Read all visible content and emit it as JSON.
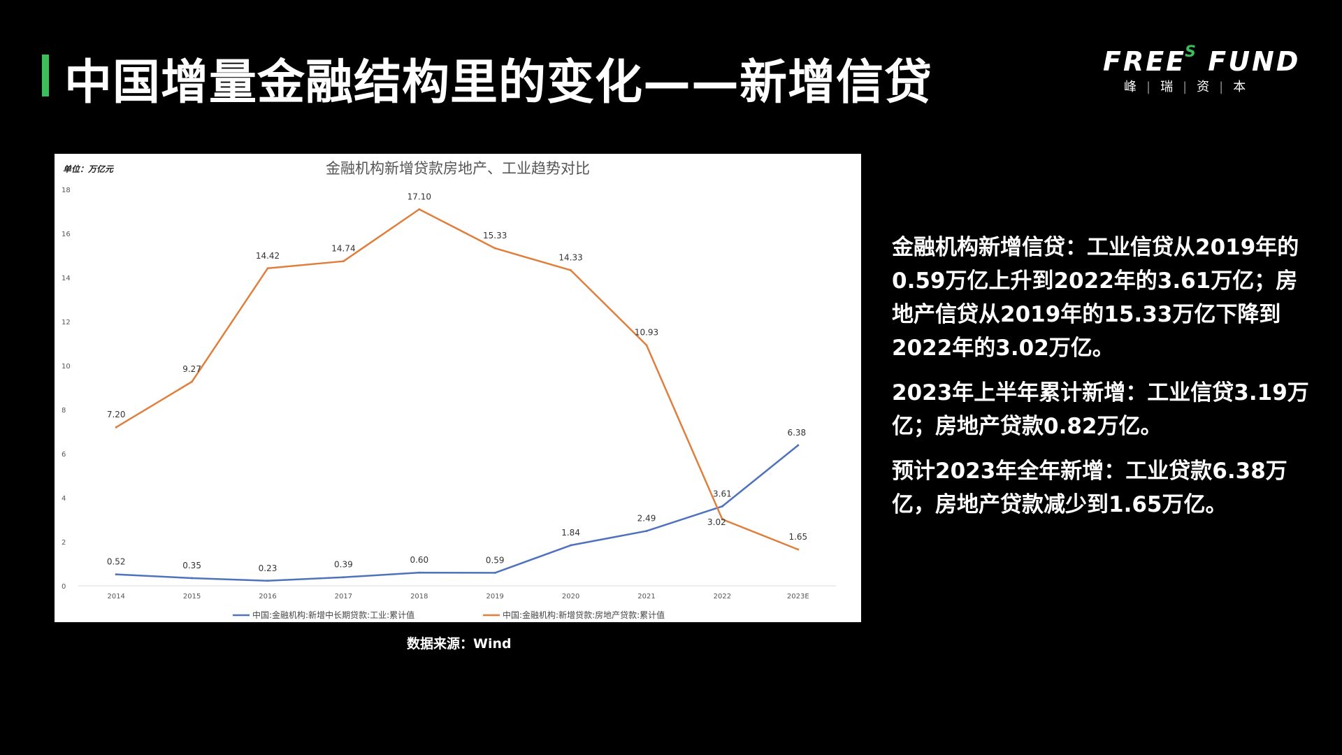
{
  "slide": {
    "title": "中国增量金融结构里的变化——新增信贷",
    "accent_color": "#3dbd5b",
    "source": "数据来源：Wind"
  },
  "logo": {
    "brand_left": "FREE",
    "brand_s": "S",
    "brand_right": "FUND",
    "sub": [
      "峰",
      "瑞",
      "资",
      "本"
    ]
  },
  "commentary": {
    "paragraphs": [
      "金融机构新增信贷：工业信贷从2019年的0.59万亿上升到2022年的3.61万亿；房地产信贷从2019年的15.33万亿下降到2022年的3.02万亿。",
      "2023年上半年累计新增：工业信贷3.19万亿；房地产贷款0.82万亿。",
      "预计2023年全年新增：工业贷款6.38万亿，房地产贷款减少到1.65万亿。"
    ]
  },
  "chart_data": {
    "type": "line",
    "title": "金融机构新增贷款房地产、工业趋势对比",
    "unit_label": "单位：万亿元",
    "categories": [
      "2014",
      "2015",
      "2016",
      "2017",
      "2018",
      "2019",
      "2020",
      "2021",
      "2022",
      "2023E"
    ],
    "ylim": [
      0,
      18
    ],
    "yticks": [
      "0",
      "2",
      "4",
      "6",
      "8",
      "10",
      "12",
      "14",
      "16",
      "18"
    ],
    "grid": false,
    "legend_position": "bottom",
    "series": [
      {
        "name": "中国:金融机构:新增中长期贷款:工业:累计值",
        "color": "#4f72be",
        "values": [
          0.52,
          0.35,
          0.23,
          0.39,
          0.6,
          0.59,
          1.84,
          2.49,
          3.61,
          6.38
        ],
        "labels": [
          "0.52",
          "0.35",
          "0.23",
          "0.39",
          "0.60",
          "0.59",
          "1.84",
          "2.49",
          "3.61",
          "6.38"
        ]
      },
      {
        "name": "中国:金融机构:新增贷款:房地产贷款:累计值",
        "color": "#e07e3c",
        "values": [
          7.2,
          9.27,
          14.42,
          14.74,
          17.1,
          15.33,
          14.33,
          10.93,
          3.02,
          1.65
        ],
        "labels": [
          "7.20",
          "9.27",
          "14.42",
          "14.74",
          "17.10",
          "15.33",
          "14.33",
          "10.93",
          "3.02",
          "1.65"
        ]
      }
    ]
  }
}
